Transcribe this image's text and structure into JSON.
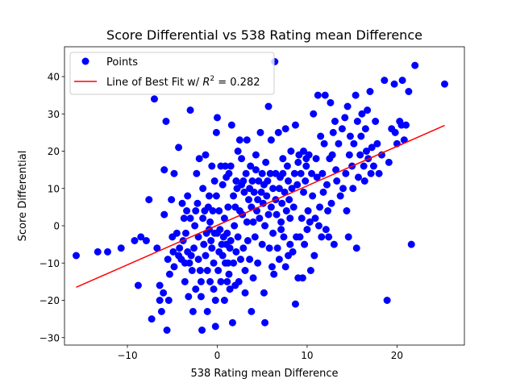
{
  "chart_data": {
    "type": "scatter",
    "title": "Score Differential vs 538 Rating mean Difference",
    "xlabel": "538 Rating mean Difference",
    "ylabel": "Score Differential",
    "xlim": [
      -17.0,
      27.5
    ],
    "ylim": [
      -32.0,
      48.0
    ],
    "xticks": [
      -10,
      0,
      10,
      20
    ],
    "yticks": [
      -30,
      -20,
      -10,
      0,
      10,
      20,
      30,
      40
    ],
    "grid": false,
    "legend": {
      "placement": "top-left",
      "entries": [
        {
          "label": "Points",
          "marker": "circle"
        },
        {
          "label_prefix": "Line of Best Fit w/ ",
          "label_math": "R",
          "label_sup": "2",
          "label_suffix": " = 0.282",
          "marker": "line"
        }
      ]
    },
    "series": [
      {
        "name": "Points",
        "kind": "scatter",
        "color": "#0000ff",
        "points": [
          [
            -15.7,
            -8
          ],
          [
            -13.3,
            -7
          ],
          [
            -12.2,
            -7
          ],
          [
            -10.7,
            -6
          ],
          [
            -9.2,
            -4
          ],
          [
            -8.8,
            -16
          ],
          [
            -8.5,
            -3
          ],
          [
            -7.9,
            -4
          ],
          [
            -7.6,
            7
          ],
          [
            -7.3,
            -25
          ],
          [
            -7.0,
            34
          ],
          [
            -6.7,
            -6
          ],
          [
            -6.4,
            -16
          ],
          [
            -6.4,
            -20
          ],
          [
            -6.2,
            -23
          ],
          [
            -6.0,
            -18
          ],
          [
            -5.9,
            3
          ],
          [
            -5.9,
            15
          ],
          [
            -5.7,
            28
          ],
          [
            -5.6,
            -28
          ],
          [
            -5.5,
            -9
          ],
          [
            -5.4,
            -20
          ],
          [
            -5.3,
            -13
          ],
          [
            -5.1,
            7
          ],
          [
            -5.0,
            -3
          ],
          [
            -4.9,
            -7
          ],
          [
            -4.8,
            14
          ],
          [
            -4.8,
            -11
          ],
          [
            -4.5,
            -2
          ],
          [
            -4.3,
            -8
          ],
          [
            -4.3,
            21
          ],
          [
            -4.2,
            -6
          ],
          [
            -4.0,
            -9
          ],
          [
            -3.9,
            6
          ],
          [
            -3.8,
            -4
          ],
          [
            -3.7,
            2
          ],
          [
            -3.6,
            -10
          ],
          [
            -3.6,
            -15
          ],
          [
            -3.5,
            -2
          ],
          [
            -3.4,
            4
          ],
          [
            -3.3,
            8
          ],
          [
            -3.3,
            -7
          ],
          [
            -3.2,
            -19
          ],
          [
            -3.1,
            -10
          ],
          [
            -3.0,
            31
          ],
          [
            -3.0,
            2
          ],
          [
            -2.9,
            -8
          ],
          [
            -2.8,
            -12
          ],
          [
            -2.7,
            -23
          ],
          [
            -2.6,
            -6
          ],
          [
            -2.5,
            0
          ],
          [
            -2.4,
            4
          ],
          [
            -2.4,
            -17
          ],
          [
            -2.3,
            14
          ],
          [
            -2.2,
            6
          ],
          [
            -2.1,
            -3
          ],
          [
            -2.1,
            -9
          ],
          [
            -2.0,
            18
          ],
          [
            -1.9,
            -12
          ],
          [
            -1.8,
            -15
          ],
          [
            -1.8,
            -19
          ],
          [
            -1.7,
            -28
          ],
          [
            -1.6,
            2
          ],
          [
            -1.6,
            10
          ],
          [
            -1.5,
            -5
          ],
          [
            -1.4,
            4
          ],
          [
            -1.3,
            -8
          ],
          [
            -1.3,
            19
          ],
          [
            -1.2,
            -2
          ],
          [
            -1.1,
            -12
          ],
          [
            -1.1,
            -23
          ],
          [
            -1.0,
            5
          ],
          [
            -0.9,
            -1
          ],
          [
            -0.9,
            8
          ],
          [
            -0.8,
            -15
          ],
          [
            -0.8,
            1
          ],
          [
            -0.7,
            -4
          ],
          [
            -0.6,
            16
          ],
          [
            -0.6,
            -6
          ],
          [
            -0.5,
            4
          ],
          [
            -0.4,
            -10
          ],
          [
            -0.4,
            -17
          ],
          [
            -0.3,
            12
          ],
          [
            -0.3,
            -2
          ],
          [
            -0.2,
            -27
          ],
          [
            -0.2,
            -20
          ],
          [
            -0.1,
            25
          ],
          [
            -0.1,
            8
          ],
          [
            0.0,
            29
          ],
          [
            0.0,
            -2
          ],
          [
            0.1,
            -12
          ],
          [
            0.2,
            4
          ],
          [
            0.2,
            -7
          ],
          [
            0.3,
            -1
          ],
          [
            0.4,
            16
          ],
          [
            0.4,
            -15
          ],
          [
            0.5,
            -5
          ],
          [
            0.6,
            -8
          ],
          [
            0.6,
            11
          ],
          [
            0.7,
            -3
          ],
          [
            0.8,
            -20
          ],
          [
            0.8,
            2
          ],
          [
            0.9,
            16
          ],
          [
            0.9,
            -10
          ],
          [
            1.0,
            13
          ],
          [
            1.0,
            -5
          ],
          [
            1.1,
            -15
          ],
          [
            1.1,
            -2
          ],
          [
            1.2,
            5
          ],
          [
            1.2,
            -10
          ],
          [
            1.3,
            14
          ],
          [
            1.3,
            -13
          ],
          [
            1.4,
            -6
          ],
          [
            1.4,
            -17
          ],
          [
            1.5,
            16
          ],
          [
            1.5,
            -4
          ],
          [
            1.6,
            27
          ],
          [
            1.7,
            -26
          ],
          [
            1.8,
            -10
          ],
          [
            1.8,
            8
          ],
          [
            1.9,
            0
          ],
          [
            2.0,
            -16
          ],
          [
            2.0,
            5
          ],
          [
            2.1,
            12
          ],
          [
            2.1,
            -7
          ],
          [
            2.2,
            10
          ],
          [
            2.3,
            -3
          ],
          [
            2.3,
            20
          ],
          [
            2.4,
            -15
          ],
          [
            2.5,
            4
          ],
          [
            2.5,
            23
          ],
          [
            2.6,
            -9
          ],
          [
            2.7,
            11
          ],
          [
            2.7,
            18
          ],
          [
            2.8,
            3
          ],
          [
            2.9,
            -6
          ],
          [
            2.9,
            12
          ],
          [
            3.0,
            9
          ],
          [
            3.1,
            -12
          ],
          [
            3.1,
            -18
          ],
          [
            3.2,
            14
          ],
          [
            3.3,
            1
          ],
          [
            3.3,
            23
          ],
          [
            3.4,
            -4
          ],
          [
            3.5,
            7
          ],
          [
            3.6,
            10
          ],
          [
            3.6,
            -9
          ],
          [
            3.7,
            16
          ],
          [
            3.8,
            5
          ],
          [
            3.8,
            -23
          ],
          [
            3.9,
            12
          ],
          [
            4.0,
            1
          ],
          [
            4.0,
            -14
          ],
          [
            4.1,
            9
          ],
          [
            4.2,
            -3
          ],
          [
            4.3,
            19
          ],
          [
            4.3,
            15
          ],
          [
            4.4,
            4
          ],
          [
            4.5,
            7
          ],
          [
            4.5,
            -10
          ],
          [
            4.6,
            12
          ],
          [
            4.7,
            2
          ],
          [
            4.8,
            25
          ],
          [
            4.9,
            9
          ],
          [
            5.0,
            -5
          ],
          [
            5.0,
            14
          ],
          [
            5.1,
            6
          ],
          [
            5.2,
            -18
          ],
          [
            5.2,
            11
          ],
          [
            5.3,
            0
          ],
          [
            5.3,
            -26
          ],
          [
            5.4,
            17
          ],
          [
            5.5,
            8
          ],
          [
            5.6,
            12
          ],
          [
            5.7,
            32
          ],
          [
            5.7,
            3
          ],
          [
            5.8,
            -6
          ],
          [
            5.9,
            14
          ],
          [
            6.0,
            23
          ],
          [
            6.0,
            5
          ],
          [
            6.1,
            -11
          ],
          [
            6.2,
            -2
          ],
          [
            6.2,
            10
          ],
          [
            6.3,
            -13
          ],
          [
            6.4,
            44
          ],
          [
            6.5,
            7
          ],
          [
            6.5,
            14
          ],
          [
            6.6,
            3
          ],
          [
            6.7,
            -6
          ],
          [
            6.8,
            25
          ],
          [
            6.9,
            -9
          ],
          [
            6.9,
            10
          ],
          [
            7.0,
            13
          ],
          [
            7.1,
            1
          ],
          [
            7.1,
            -1
          ],
          [
            7.2,
            6
          ],
          [
            7.3,
            14
          ],
          [
            7.3,
            18
          ],
          [
            7.4,
            -3
          ],
          [
            7.5,
            9
          ],
          [
            7.6,
            26
          ],
          [
            7.6,
            -11
          ],
          [
            7.7,
            4
          ],
          [
            7.8,
            16
          ],
          [
            7.9,
            -8
          ],
          [
            7.9,
            12
          ],
          [
            8.0,
            7
          ],
          [
            8.1,
            2
          ],
          [
            8.1,
            -5
          ],
          [
            8.2,
            20
          ],
          [
            8.3,
            10
          ],
          [
            8.4,
            -7
          ],
          [
            8.5,
            5
          ],
          [
            8.6,
            14
          ],
          [
            8.7,
            -21
          ],
          [
            8.7,
            27
          ],
          [
            8.8,
            -3
          ],
          [
            8.9,
            11
          ],
          [
            9.0,
            17
          ],
          [
            9.0,
            -14
          ],
          [
            9.1,
            19
          ],
          [
            9.2,
            -3
          ],
          [
            9.3,
            14
          ],
          [
            9.4,
            2
          ],
          [
            9.5,
            -14
          ],
          [
            9.6,
            9
          ],
          [
            9.6,
            20
          ],
          [
            9.7,
            -5
          ],
          [
            9.8,
            12
          ],
          [
            9.9,
            16
          ],
          [
            9.9,
            18
          ],
          [
            10.0,
            -1
          ],
          [
            10.1,
            4
          ],
          [
            10.2,
            19
          ],
          [
            10.3,
            1
          ],
          [
            10.4,
            -12
          ],
          [
            10.5,
            14
          ],
          [
            10.6,
            8
          ],
          [
            10.7,
            30
          ],
          [
            10.8,
            -8
          ],
          [
            10.9,
            2
          ],
          [
            11.0,
            18
          ],
          [
            11.1,
            13
          ],
          [
            11.2,
            35
          ],
          [
            11.3,
            0
          ],
          [
            11.4,
            5
          ],
          [
            11.5,
            24
          ],
          [
            11.6,
            -3
          ],
          [
            11.7,
            14
          ],
          [
            11.8,
            9
          ],
          [
            11.9,
            22
          ],
          [
            12.0,
            35
          ],
          [
            12.1,
            -1
          ],
          [
            12.2,
            11
          ],
          [
            12.3,
            4
          ],
          [
            12.4,
            -3
          ],
          [
            12.5,
            18
          ],
          [
            12.6,
            33
          ],
          [
            12.7,
            6
          ],
          [
            12.8,
            19
          ],
          [
            12.9,
            25
          ],
          [
            13.0,
            -5
          ],
          [
            13.1,
            28
          ],
          [
            13.2,
            15
          ],
          [
            13.3,
            12
          ],
          [
            13.5,
            22
          ],
          [
            13.7,
            8
          ],
          [
            13.9,
            26
          ],
          [
            14.0,
            10
          ],
          [
            14.2,
            29
          ],
          [
            14.3,
            14
          ],
          [
            14.4,
            4
          ],
          [
            14.5,
            32
          ],
          [
            14.6,
            -3
          ],
          [
            14.7,
            19
          ],
          [
            14.8,
            24
          ],
          [
            15.0,
            16
          ],
          [
            15.1,
            10
          ],
          [
            15.2,
            22
          ],
          [
            15.4,
            35
          ],
          [
            15.5,
            -6
          ],
          [
            15.6,
            28
          ],
          [
            15.7,
            13
          ],
          [
            15.9,
            19
          ],
          [
            16.0,
            24
          ],
          [
            16.1,
            30
          ],
          [
            16.3,
            16
          ],
          [
            16.4,
            12
          ],
          [
            16.5,
            26
          ],
          [
            16.6,
            20
          ],
          [
            16.7,
            31
          ],
          [
            16.8,
            18
          ],
          [
            17.0,
            36
          ],
          [
            17.1,
            14
          ],
          [
            17.2,
            21
          ],
          [
            17.4,
            16
          ],
          [
            17.6,
            28
          ],
          [
            17.8,
            22
          ],
          [
            18.0,
            14
          ],
          [
            18.3,
            19
          ],
          [
            18.6,
            39
          ],
          [
            18.9,
            -20
          ],
          [
            19.1,
            17
          ],
          [
            19.4,
            26
          ],
          [
            19.7,
            38
          ],
          [
            20.0,
            22
          ],
          [
            20.3,
            28
          ],
          [
            20.6,
            39
          ],
          [
            21.0,
            27
          ],
          [
            21.3,
            36
          ],
          [
            21.6,
            -5
          ],
          [
            22.0,
            43
          ],
          [
            20.8,
            23
          ],
          [
            25.3,
            38
          ],
          [
            19.8,
            25
          ],
          [
            20.5,
            27
          ]
        ]
      },
      {
        "name": "Line of Best Fit w/ R^2 = 0.282",
        "kind": "line",
        "color": "#ff0000",
        "x": [
          -15.7,
          25.3
        ],
        "y": [
          -16.5,
          26.9
        ]
      }
    ]
  }
}
